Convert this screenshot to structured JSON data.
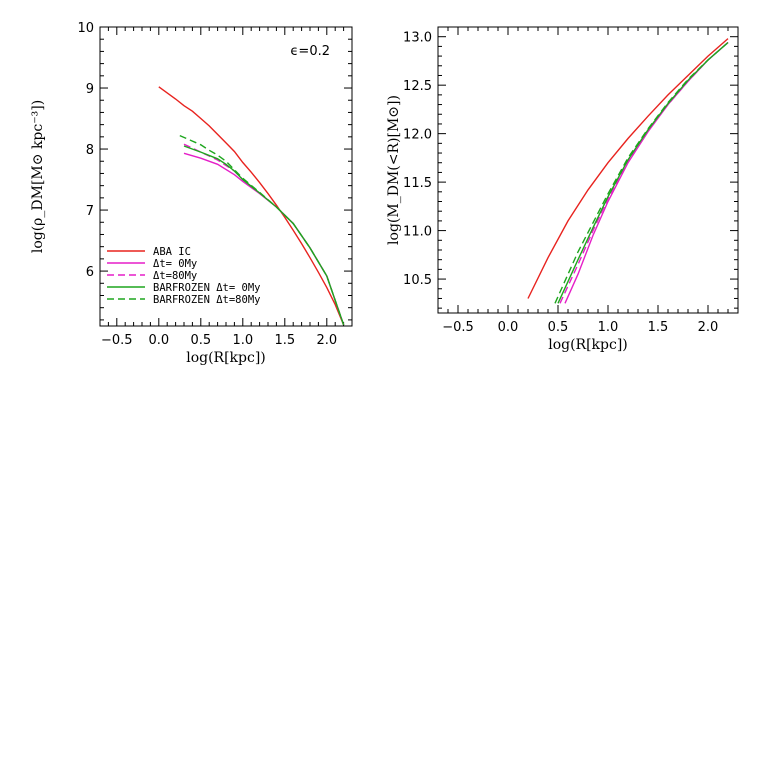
{
  "chart_data": [
    {
      "type": "line",
      "xlabel": "log(R[kpc])",
      "ylabel": "log(ρ_DM[M⊙ kpc⁻³])",
      "xlim": [
        -0.7,
        2.3
      ],
      "ylim": [
        5.1,
        10.0
      ],
      "xticks": [
        -0.5,
        0.0,
        0.5,
        1.0,
        1.5,
        2.0
      ],
      "xtick_labels": [
        "−0.5",
        "0.0",
        "0.5",
        "1.0",
        "1.5",
        "2.0"
      ],
      "yticks": [
        6,
        7,
        8,
        9,
        10
      ],
      "ytick_labels": [
        "6",
        "7",
        "8",
        "9",
        "10"
      ],
      "annotation": "ϵ=0.2",
      "legend_placement": "bottom-left",
      "series": [
        {
          "name": "ABA IC",
          "color": "#e8231f",
          "dash": "solid",
          "x": [
            0.0,
            0.1,
            0.2,
            0.3,
            0.4,
            0.5,
            0.6,
            0.7,
            0.8,
            0.9,
            1.0,
            1.1,
            1.2,
            1.3,
            1.4,
            1.5,
            1.6,
            1.7,
            1.8,
            1.9,
            2.0,
            2.1,
            2.2
          ],
          "y": [
            9.02,
            8.92,
            8.82,
            8.71,
            8.62,
            8.5,
            8.38,
            8.24,
            8.1,
            7.96,
            7.78,
            7.62,
            7.45,
            7.27,
            7.08,
            6.88,
            6.67,
            6.45,
            6.22,
            5.98,
            5.73,
            5.45,
            5.12
          ]
        },
        {
          "name": "Δt= 0My",
          "color": "#e51fc8",
          "dash": "solid",
          "x": [
            0.3,
            0.5,
            0.7,
            0.9,
            1.0,
            1.2,
            1.4,
            1.6,
            1.8,
            2.0,
            2.2
          ],
          "y": [
            7.93,
            7.85,
            7.75,
            7.58,
            7.47,
            7.27,
            7.05,
            6.78,
            6.38,
            5.92,
            5.12
          ]
        },
        {
          "name": "Δt=80My",
          "color": "#e51fc8",
          "dash": "dashed",
          "x": [
            0.3,
            0.5,
            0.7,
            0.9,
            1.0,
            1.2,
            1.4,
            1.6,
            1.8,
            2.0,
            2.2
          ],
          "y": [
            8.08,
            7.95,
            7.82,
            7.64,
            7.5,
            7.28,
            7.05,
            6.78,
            6.38,
            5.92,
            5.12
          ]
        },
        {
          "name": "BARFROZEN Δt= 0My",
          "color": "#1ea61e",
          "dash": "solid",
          "x": [
            0.3,
            0.5,
            0.7,
            0.8,
            0.9,
            1.0,
            1.2,
            1.4,
            1.6,
            1.8,
            2.0,
            2.2
          ],
          "y": [
            8.05,
            7.95,
            7.84,
            7.75,
            7.64,
            7.5,
            7.28,
            7.05,
            6.78,
            6.38,
            5.92,
            5.12
          ]
        },
        {
          "name": "BARFROZEN Δt=80My",
          "color": "#1ea61e",
          "dash": "dashed",
          "x": [
            0.25,
            0.4,
            0.5,
            0.6,
            0.7,
            0.8,
            0.9,
            1.0,
            1.2,
            1.4,
            1.6,
            1.8,
            2.0,
            2.2
          ],
          "y": [
            8.22,
            8.13,
            8.07,
            7.98,
            7.9,
            7.8,
            7.66,
            7.52,
            7.29,
            7.05,
            6.78,
            6.38,
            5.92,
            5.12
          ]
        }
      ]
    },
    {
      "type": "line",
      "xlabel": "log(R[kpc])",
      "ylabel": "log(M_DM(<R)[M⊙])",
      "xlim": [
        -0.7,
        2.3
      ],
      "ylim": [
        10.15,
        13.1
      ],
      "xticks": [
        -0.5,
        0.0,
        0.5,
        1.0,
        1.5,
        2.0
      ],
      "xtick_labels": [
        "−0.5",
        "0.0",
        "0.5",
        "1.0",
        "1.5",
        "2.0"
      ],
      "yticks": [
        10.5,
        11.0,
        11.5,
        12.0,
        12.5,
        13.0
      ],
      "ytick_labels": [
        "10.5",
        "11.0",
        "11.5",
        "12.0",
        "12.5",
        "13.0"
      ],
      "series": [
        {
          "name": "ABA IC",
          "color": "#e8231f",
          "dash": "solid",
          "x": [
            0.2,
            0.4,
            0.6,
            0.8,
            1.0,
            1.2,
            1.4,
            1.6,
            1.8,
            2.0,
            2.2
          ],
          "y": [
            10.3,
            10.72,
            11.1,
            11.42,
            11.7,
            11.95,
            12.18,
            12.4,
            12.6,
            12.8,
            12.98
          ]
        },
        {
          "name": "Δt= 0My",
          "color": "#e51fc8",
          "dash": "solid",
          "x": [
            0.57,
            0.7,
            0.85,
            1.0,
            1.2,
            1.4,
            1.6,
            1.8,
            2.0,
            2.2
          ],
          "y": [
            10.25,
            10.55,
            10.95,
            11.3,
            11.7,
            12.02,
            12.3,
            12.54,
            12.76,
            12.94
          ]
        },
        {
          "name": "Δt=80My",
          "color": "#e51fc8",
          "dash": "dashed",
          "x": [
            0.52,
            0.7,
            0.85,
            1.0,
            1.2,
            1.4,
            1.6,
            1.8,
            2.0,
            2.2
          ],
          "y": [
            10.25,
            10.65,
            11.0,
            11.33,
            11.72,
            12.03,
            12.3,
            12.54,
            12.76,
            12.94
          ]
        },
        {
          "name": "BARFROZEN Δt= 0My",
          "color": "#1ea61e",
          "dash": "solid",
          "x": [
            0.5,
            0.7,
            0.85,
            1.0,
            1.2,
            1.4,
            1.6,
            1.8,
            2.0,
            2.2
          ],
          "y": [
            10.25,
            10.7,
            11.03,
            11.35,
            11.73,
            12.04,
            12.31,
            12.55,
            12.76,
            12.94
          ]
        },
        {
          "name": "BARFROZEN Δt=80My",
          "color": "#1ea61e",
          "dash": "dashed",
          "x": [
            0.47,
            0.7,
            0.85,
            1.0,
            1.2,
            1.4,
            1.6,
            1.8,
            2.0,
            2.2
          ],
          "y": [
            10.25,
            10.78,
            11.08,
            11.38,
            11.75,
            12.05,
            12.32,
            12.56,
            12.76,
            12.94
          ]
        }
      ]
    }
  ]
}
